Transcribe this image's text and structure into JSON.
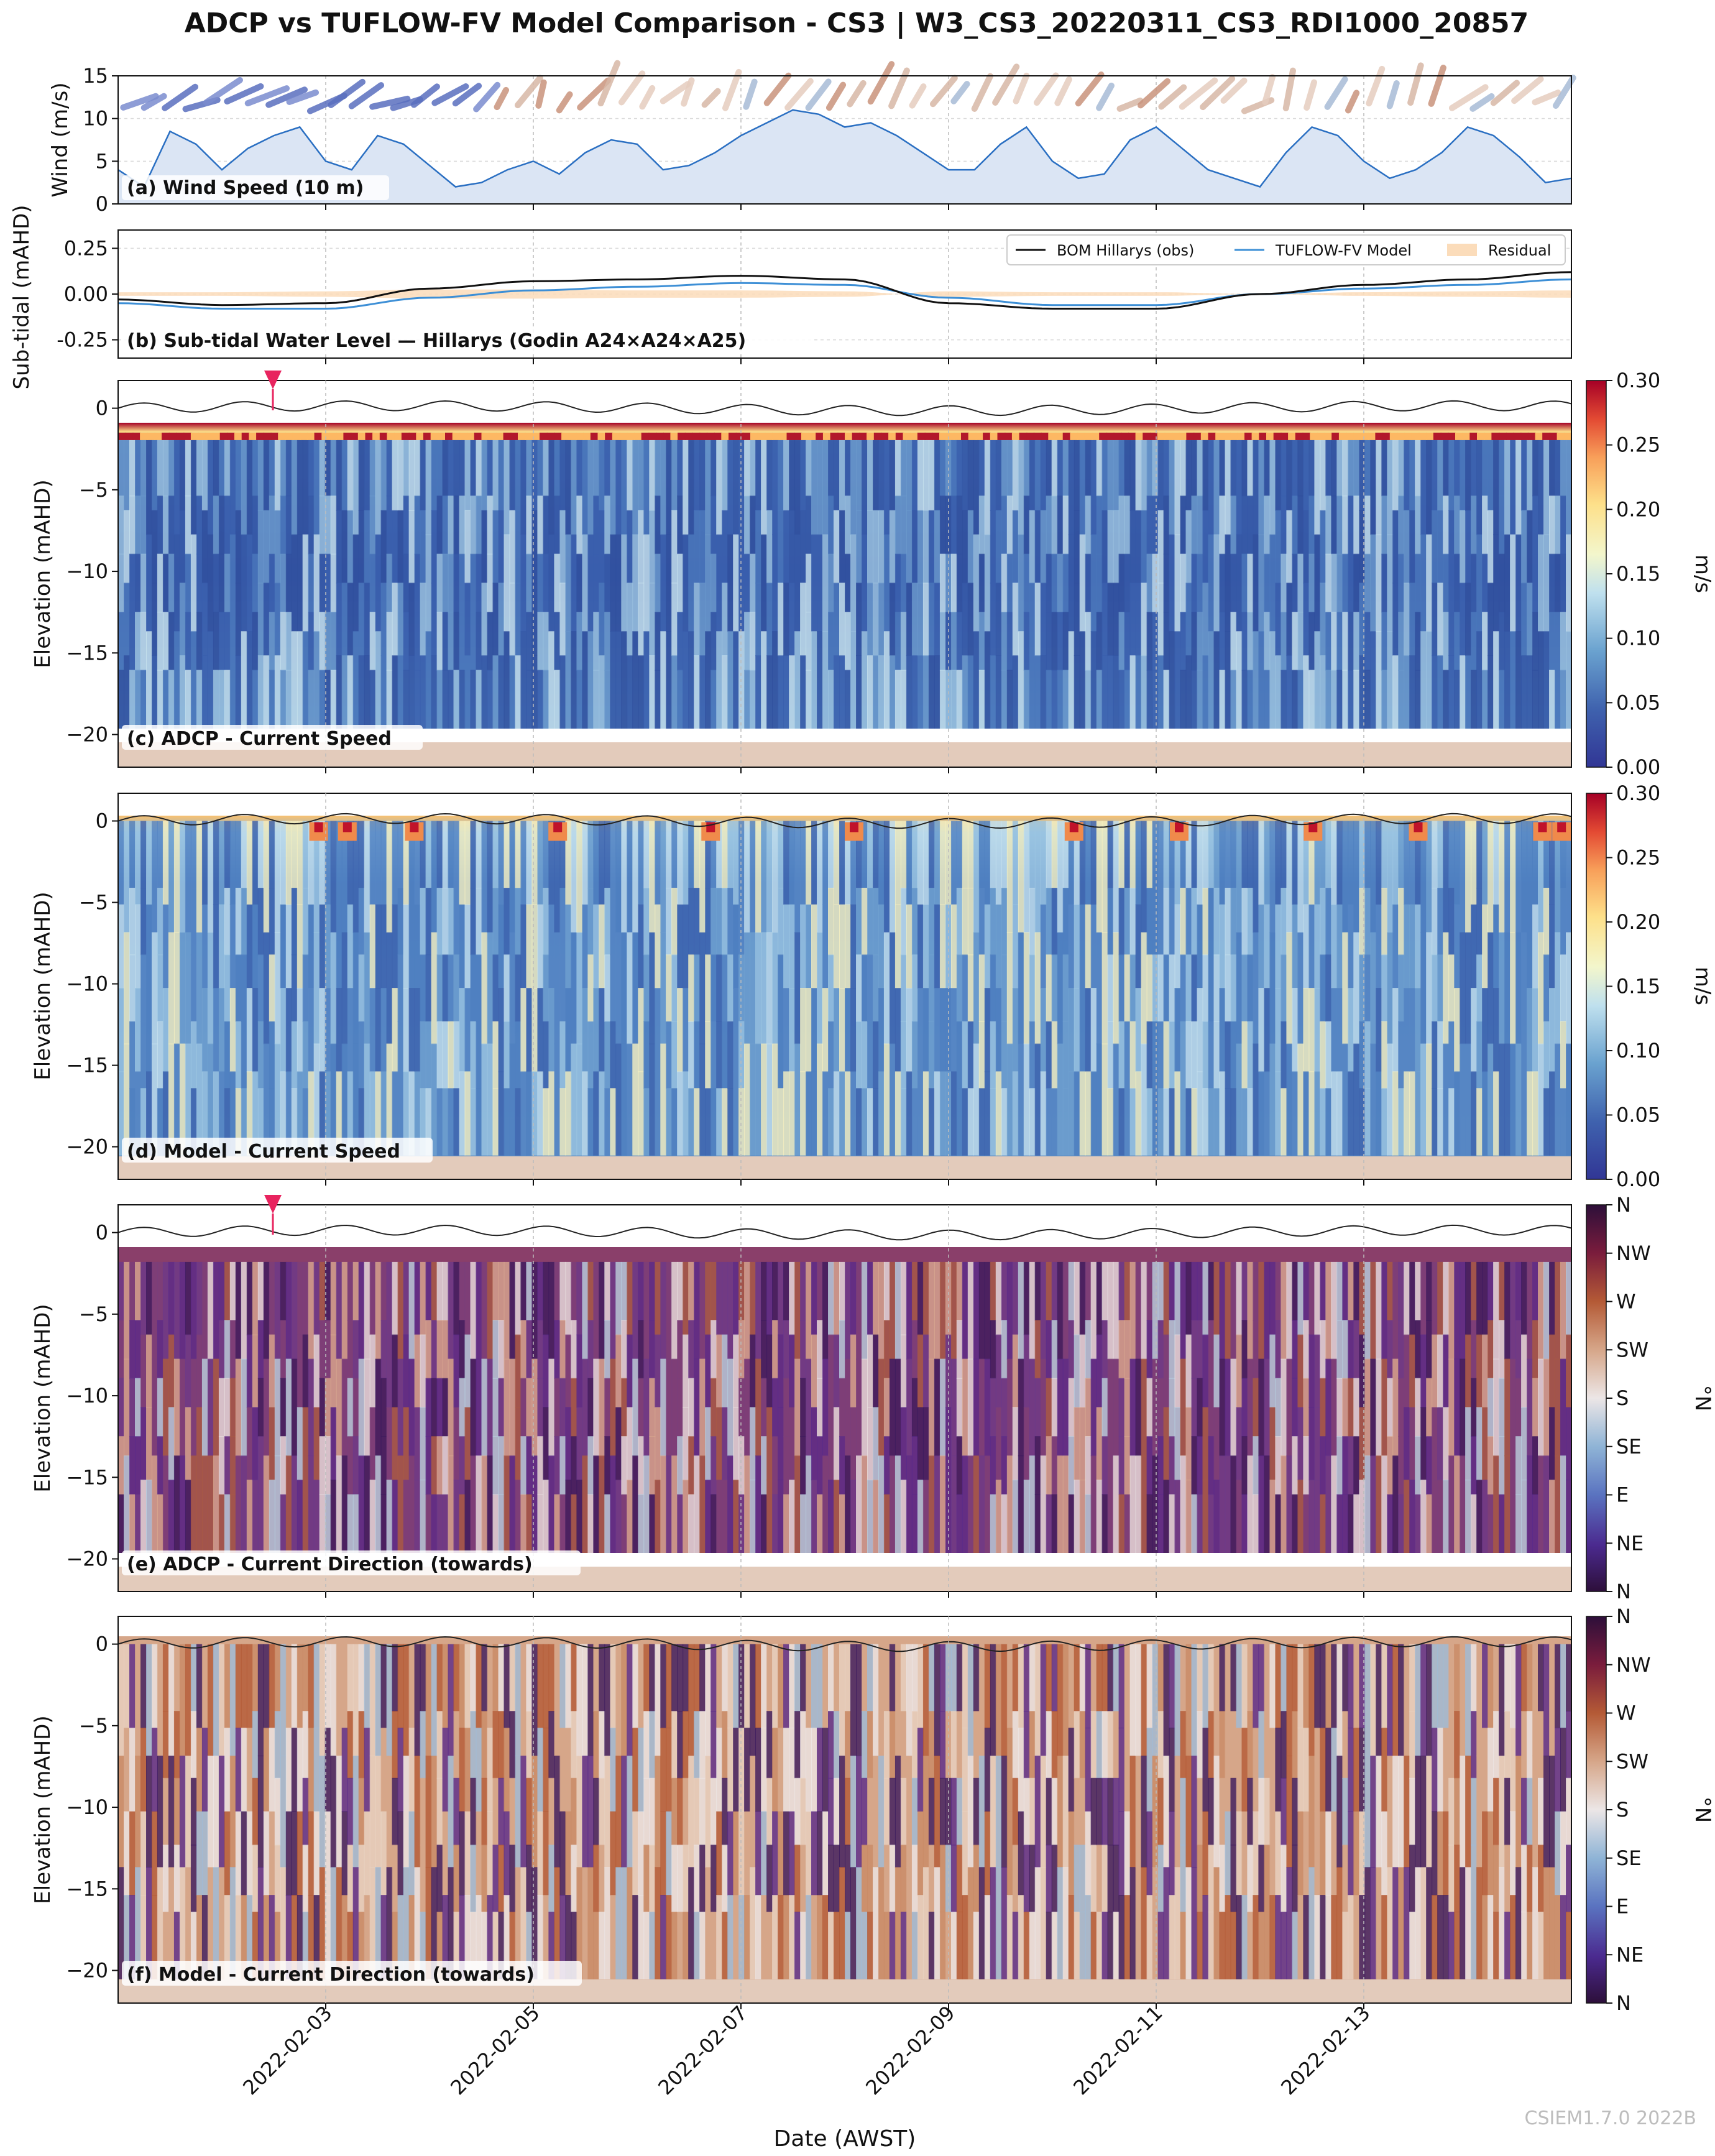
{
  "figure": {
    "title": "ADCP vs TUFLOW-FV Model Comparison - CS3 | W3_CS3_20220311_CS3_RDI1000_20857",
    "xlabel": "Date (AWST)",
    "watermark": "CSIEM1.7.0 2022B",
    "date_ticks": [
      "2022-02-03",
      "2022-02-05",
      "2022-02-07",
      "2022-02-09",
      "2022-02-11",
      "2022-02-13"
    ]
  },
  "colors": {
    "wind_line": "#2a6fc2",
    "wind_fill": "#dbe5f4",
    "obs_line": "#111111",
    "model_line": "#3d8fd6",
    "residual_fill": "#fbdcba",
    "seabed": "#e3cbbb",
    "marker": "#e8245f"
  },
  "chart_data": [
    {
      "id": "a",
      "type": "area",
      "panel_label": "(a) Wind Speed (10 m)",
      "ylabel": "Wind (m/s)",
      "ylim": [
        0,
        15
      ],
      "yticks": [
        0,
        5,
        10,
        15
      ],
      "x_range": [
        "2022-02-01T00:00",
        "2022-02-15T00:00"
      ],
      "x_days": [
        0,
        0.25,
        0.5,
        0.75,
        1,
        1.25,
        1.5,
        1.75,
        2,
        2.25,
        2.5,
        2.75,
        3,
        3.25,
        3.5,
        3.75,
        4,
        4.25,
        4.5,
        4.75,
        5,
        5.25,
        5.5,
        5.75,
        6,
        6.25,
        6.5,
        6.75,
        7,
        7.25,
        7.5,
        7.75,
        8,
        8.25,
        8.5,
        8.75,
        9,
        9.25,
        9.5,
        9.75,
        10,
        10.25,
        10.5,
        10.75,
        11,
        11.25,
        11.5,
        11.75,
        12,
        12.25,
        12.5,
        12.75,
        13,
        13.25,
        13.5,
        13.75,
        14
      ],
      "values": [
        4,
        2,
        8.5,
        7,
        4,
        6.5,
        8,
        9,
        5,
        4,
        8,
        7,
        4.5,
        2,
        2.5,
        4,
        5,
        3.5,
        6,
        7.5,
        7,
        4,
        4.5,
        6,
        8,
        9.5,
        11,
        10.5,
        9,
        9.5,
        8,
        6,
        4,
        4,
        7,
        9,
        5,
        3,
        3.5,
        7.5,
        9,
        6.5,
        4,
        3,
        2,
        6,
        9,
        8,
        5,
        3,
        4,
        6,
        9,
        8,
        5.5,
        2.5,
        3
      ],
      "wind_arrows": {
        "y_level": 11.5,
        "note": "direction-coloured wind barbs"
      }
    },
    {
      "id": "b",
      "type": "line",
      "panel_label": "(b) Sub-tidal Water Level — Hillarys (Godin A24×A24×A25)",
      "ylabel": "Sub-tidal (mAHD)",
      "ylim": [
        -0.35,
        0.35
      ],
      "yticks": [
        "-0.25",
        "0.00",
        "0.25"
      ],
      "x_range": [
        "2022-02-01T00:00",
        "2022-02-15T00:00"
      ],
      "legend": [
        "BOM Hillarys (obs)",
        "TUFLOW-FV Model",
        "Residual"
      ],
      "x_days": [
        0,
        1,
        2,
        3,
        4,
        5,
        6,
        7,
        8,
        9,
        10,
        11,
        12,
        13,
        14
      ],
      "series": [
        {
          "name": "BOM Hillarys (obs)",
          "values": [
            -0.03,
            -0.06,
            -0.05,
            0.03,
            0.07,
            0.08,
            0.1,
            0.08,
            -0.05,
            -0.08,
            -0.08,
            0.0,
            0.05,
            0.08,
            0.12
          ]
        },
        {
          "name": "TUFLOW-FV Model",
          "values": [
            -0.05,
            -0.08,
            -0.08,
            -0.02,
            0.02,
            0.04,
            0.06,
            0.05,
            -0.02,
            -0.06,
            -0.06,
            0.0,
            0.03,
            0.05,
            0.08
          ]
        },
        {
          "name": "Residual",
          "values": [
            0.02,
            0.02,
            0.03,
            0.05,
            0.05,
            0.04,
            0.04,
            0.03,
            -0.03,
            -0.02,
            -0.02,
            0.0,
            0.02,
            0.03,
            0.04
          ]
        }
      ]
    },
    {
      "id": "c",
      "type": "heatmap",
      "panel_label": "(c) ADCP - Current Speed",
      "ylabel": "Elevation (mAHD)",
      "ylim": [
        -22,
        1.7
      ],
      "yticks": [
        0,
        -5,
        -10,
        -15,
        -20
      ],
      "colorbar": {
        "label": "m/s",
        "ticks": [
          "0.00",
          "0.05",
          "0.10",
          "0.15",
          "0.20",
          "0.25",
          "0.30"
        ],
        "range": [
          0,
          0.3
        ]
      },
      "seabed_elevation": -20.5,
      "data_bottom": -19.6,
      "marker_day": 2.5
    },
    {
      "id": "d",
      "type": "heatmap",
      "panel_label": "(d) Model - Current Speed",
      "ylabel": "Elevation (mAHD)",
      "ylim": [
        -22,
        1.7
      ],
      "yticks": [
        0,
        -5,
        -10,
        -15,
        -20
      ],
      "colorbar": {
        "label": "m/s",
        "ticks": [
          "0.00",
          "0.05",
          "0.10",
          "0.15",
          "0.20",
          "0.25",
          "0.30"
        ],
        "range": [
          0,
          0.3
        ]
      },
      "seabed_elevation": -20.5
    },
    {
      "id": "e",
      "type": "heatmap",
      "panel_label": "(e) ADCP - Current Direction (towards)",
      "ylabel": "Elevation (mAHD)",
      "ylim": [
        -22,
        1.7
      ],
      "yticks": [
        0,
        -5,
        -10,
        -15,
        -20
      ],
      "colorbar": {
        "label": "°N",
        "ticks": [
          "N",
          "NE",
          "E",
          "SE",
          "S",
          "SW",
          "W",
          "NW",
          "N"
        ]
      },
      "seabed_elevation": -20.5,
      "data_bottom": -19.6,
      "marker_day": 2.5
    },
    {
      "id": "f",
      "type": "heatmap",
      "panel_label": "(f) Model - Current Direction (towards)",
      "ylabel": "Elevation (mAHD)",
      "ylim": [
        -22,
        1.7
      ],
      "yticks": [
        0,
        -5,
        -10,
        -15,
        -20
      ],
      "colorbar": {
        "label": "°N",
        "ticks": [
          "N",
          "NE",
          "E",
          "SE",
          "S",
          "SW",
          "W",
          "NW",
          "N"
        ]
      },
      "seabed_elevation": -20.5
    }
  ]
}
